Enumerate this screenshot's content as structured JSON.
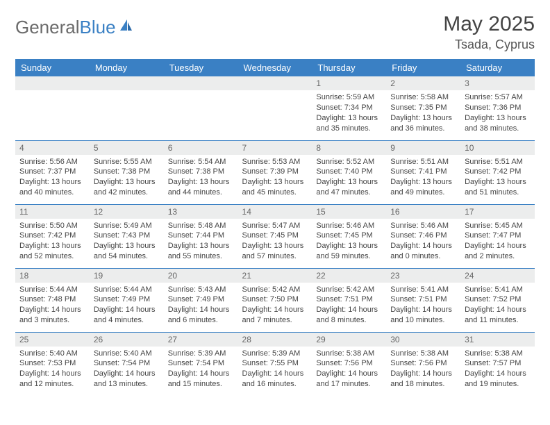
{
  "brand": {
    "text1": "General",
    "text2": "Blue"
  },
  "title": "May 2025",
  "location": "Tsada, Cyprus",
  "colors": {
    "header_bg": "#3a80c4",
    "header_text": "#ffffff",
    "daynum_bg": "#eceded",
    "border": "#3a80c4",
    "logo_gray": "#6a6a6a",
    "logo_blue": "#3a80c4"
  },
  "weekdays": [
    "Sunday",
    "Monday",
    "Tuesday",
    "Wednesday",
    "Thursday",
    "Friday",
    "Saturday"
  ],
  "weeks": [
    [
      {
        "n": "",
        "sr": "",
        "ss": "",
        "dl": ""
      },
      {
        "n": "",
        "sr": "",
        "ss": "",
        "dl": ""
      },
      {
        "n": "",
        "sr": "",
        "ss": "",
        "dl": ""
      },
      {
        "n": "",
        "sr": "",
        "ss": "",
        "dl": ""
      },
      {
        "n": "1",
        "sr": "Sunrise: 5:59 AM",
        "ss": "Sunset: 7:34 PM",
        "dl": "Daylight: 13 hours and 35 minutes."
      },
      {
        "n": "2",
        "sr": "Sunrise: 5:58 AM",
        "ss": "Sunset: 7:35 PM",
        "dl": "Daylight: 13 hours and 36 minutes."
      },
      {
        "n": "3",
        "sr": "Sunrise: 5:57 AM",
        "ss": "Sunset: 7:36 PM",
        "dl": "Daylight: 13 hours and 38 minutes."
      }
    ],
    [
      {
        "n": "4",
        "sr": "Sunrise: 5:56 AM",
        "ss": "Sunset: 7:37 PM",
        "dl": "Daylight: 13 hours and 40 minutes."
      },
      {
        "n": "5",
        "sr": "Sunrise: 5:55 AM",
        "ss": "Sunset: 7:38 PM",
        "dl": "Daylight: 13 hours and 42 minutes."
      },
      {
        "n": "6",
        "sr": "Sunrise: 5:54 AM",
        "ss": "Sunset: 7:38 PM",
        "dl": "Daylight: 13 hours and 44 minutes."
      },
      {
        "n": "7",
        "sr": "Sunrise: 5:53 AM",
        "ss": "Sunset: 7:39 PM",
        "dl": "Daylight: 13 hours and 45 minutes."
      },
      {
        "n": "8",
        "sr": "Sunrise: 5:52 AM",
        "ss": "Sunset: 7:40 PM",
        "dl": "Daylight: 13 hours and 47 minutes."
      },
      {
        "n": "9",
        "sr": "Sunrise: 5:51 AM",
        "ss": "Sunset: 7:41 PM",
        "dl": "Daylight: 13 hours and 49 minutes."
      },
      {
        "n": "10",
        "sr": "Sunrise: 5:51 AM",
        "ss": "Sunset: 7:42 PM",
        "dl": "Daylight: 13 hours and 51 minutes."
      }
    ],
    [
      {
        "n": "11",
        "sr": "Sunrise: 5:50 AM",
        "ss": "Sunset: 7:42 PM",
        "dl": "Daylight: 13 hours and 52 minutes."
      },
      {
        "n": "12",
        "sr": "Sunrise: 5:49 AM",
        "ss": "Sunset: 7:43 PM",
        "dl": "Daylight: 13 hours and 54 minutes."
      },
      {
        "n": "13",
        "sr": "Sunrise: 5:48 AM",
        "ss": "Sunset: 7:44 PM",
        "dl": "Daylight: 13 hours and 55 minutes."
      },
      {
        "n": "14",
        "sr": "Sunrise: 5:47 AM",
        "ss": "Sunset: 7:45 PM",
        "dl": "Daylight: 13 hours and 57 minutes."
      },
      {
        "n": "15",
        "sr": "Sunrise: 5:46 AM",
        "ss": "Sunset: 7:45 PM",
        "dl": "Daylight: 13 hours and 59 minutes."
      },
      {
        "n": "16",
        "sr": "Sunrise: 5:46 AM",
        "ss": "Sunset: 7:46 PM",
        "dl": "Daylight: 14 hours and 0 minutes."
      },
      {
        "n": "17",
        "sr": "Sunrise: 5:45 AM",
        "ss": "Sunset: 7:47 PM",
        "dl": "Daylight: 14 hours and 2 minutes."
      }
    ],
    [
      {
        "n": "18",
        "sr": "Sunrise: 5:44 AM",
        "ss": "Sunset: 7:48 PM",
        "dl": "Daylight: 14 hours and 3 minutes."
      },
      {
        "n": "19",
        "sr": "Sunrise: 5:44 AM",
        "ss": "Sunset: 7:49 PM",
        "dl": "Daylight: 14 hours and 4 minutes."
      },
      {
        "n": "20",
        "sr": "Sunrise: 5:43 AM",
        "ss": "Sunset: 7:49 PM",
        "dl": "Daylight: 14 hours and 6 minutes."
      },
      {
        "n": "21",
        "sr": "Sunrise: 5:42 AM",
        "ss": "Sunset: 7:50 PM",
        "dl": "Daylight: 14 hours and 7 minutes."
      },
      {
        "n": "22",
        "sr": "Sunrise: 5:42 AM",
        "ss": "Sunset: 7:51 PM",
        "dl": "Daylight: 14 hours and 8 minutes."
      },
      {
        "n": "23",
        "sr": "Sunrise: 5:41 AM",
        "ss": "Sunset: 7:51 PM",
        "dl": "Daylight: 14 hours and 10 minutes."
      },
      {
        "n": "24",
        "sr": "Sunrise: 5:41 AM",
        "ss": "Sunset: 7:52 PM",
        "dl": "Daylight: 14 hours and 11 minutes."
      }
    ],
    [
      {
        "n": "25",
        "sr": "Sunrise: 5:40 AM",
        "ss": "Sunset: 7:53 PM",
        "dl": "Daylight: 14 hours and 12 minutes."
      },
      {
        "n": "26",
        "sr": "Sunrise: 5:40 AM",
        "ss": "Sunset: 7:54 PM",
        "dl": "Daylight: 14 hours and 13 minutes."
      },
      {
        "n": "27",
        "sr": "Sunrise: 5:39 AM",
        "ss": "Sunset: 7:54 PM",
        "dl": "Daylight: 14 hours and 15 minutes."
      },
      {
        "n": "28",
        "sr": "Sunrise: 5:39 AM",
        "ss": "Sunset: 7:55 PM",
        "dl": "Daylight: 14 hours and 16 minutes."
      },
      {
        "n": "29",
        "sr": "Sunrise: 5:38 AM",
        "ss": "Sunset: 7:56 PM",
        "dl": "Daylight: 14 hours and 17 minutes."
      },
      {
        "n": "30",
        "sr": "Sunrise: 5:38 AM",
        "ss": "Sunset: 7:56 PM",
        "dl": "Daylight: 14 hours and 18 minutes."
      },
      {
        "n": "31",
        "sr": "Sunrise: 5:38 AM",
        "ss": "Sunset: 7:57 PM",
        "dl": "Daylight: 14 hours and 19 minutes."
      }
    ]
  ]
}
